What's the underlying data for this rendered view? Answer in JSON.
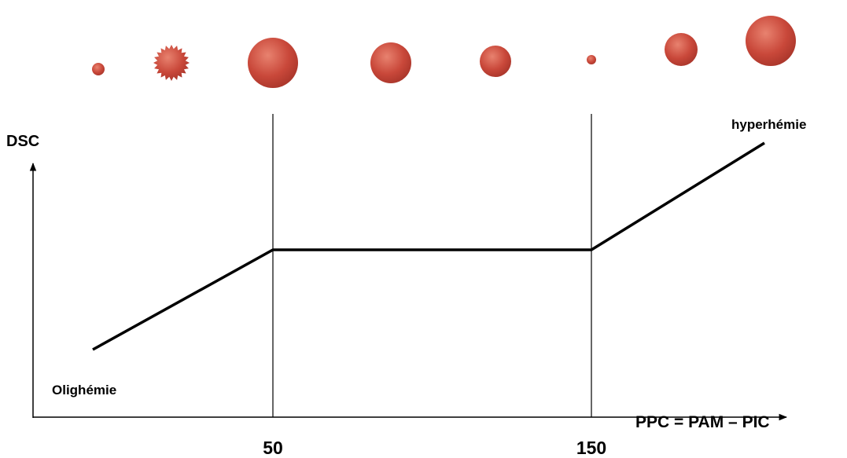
{
  "axes": {
    "y_label": "DSC",
    "x_label": "PPC = PAM – PIC",
    "ticks": [
      "50",
      "150"
    ]
  },
  "annotations": {
    "high": "hyperhémie",
    "low": "Olighémie"
  }
}
